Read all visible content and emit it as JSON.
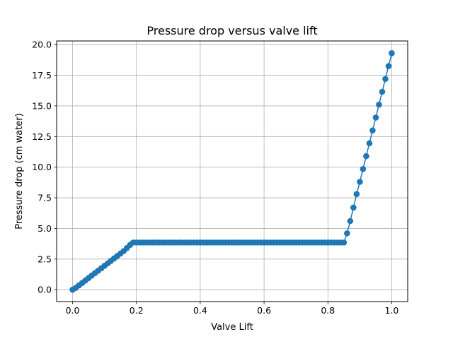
{
  "chart_data": {
    "type": "line",
    "title": "Pressure drop versus valve lift",
    "xlabel": "Valve Lift",
    "ylabel": "Pressure drop (cm water)",
    "xlim": [
      -0.05,
      1.05
    ],
    "ylim": [
      -0.97,
      20.3
    ],
    "xticks": [
      0.0,
      0.2,
      0.4,
      0.6,
      0.8,
      1.0
    ],
    "xtick_labels": [
      "0.0",
      "0.2",
      "0.4",
      "0.6",
      "0.8",
      "1.0"
    ],
    "yticks": [
      0.0,
      2.5,
      5.0,
      7.5,
      10.0,
      12.5,
      15.0,
      17.5,
      20.0
    ],
    "ytick_labels": [
      "0.0",
      "2.5",
      "5.0",
      "7.5",
      "10.0",
      "12.5",
      "15.0",
      "17.5",
      "20.0"
    ],
    "grid": true,
    "legend": "none",
    "series": [
      {
        "color": "#1f77b4",
        "marker": "circle",
        "x": [
          0.0,
          0.01,
          0.02,
          0.03,
          0.04,
          0.05,
          0.06,
          0.07,
          0.08,
          0.09,
          0.1,
          0.11,
          0.12,
          0.13,
          0.14,
          0.15,
          0.16,
          0.17,
          0.18,
          0.19,
          0.2,
          0.21,
          0.22,
          0.23,
          0.24,
          0.25,
          0.26,
          0.27,
          0.28,
          0.29,
          0.3,
          0.31,
          0.32,
          0.33,
          0.34,
          0.35,
          0.36,
          0.37,
          0.38,
          0.39,
          0.4,
          0.41,
          0.42,
          0.43,
          0.44,
          0.45,
          0.46,
          0.47,
          0.48,
          0.49,
          0.5,
          0.51,
          0.52,
          0.53,
          0.54,
          0.55,
          0.56,
          0.57,
          0.58,
          0.59,
          0.6,
          0.61,
          0.62,
          0.63,
          0.64,
          0.65,
          0.66,
          0.67,
          0.68,
          0.69,
          0.7,
          0.71,
          0.72,
          0.73,
          0.74,
          0.75,
          0.76,
          0.77,
          0.78,
          0.79,
          0.8,
          0.81,
          0.82,
          0.83,
          0.84,
          0.85,
          0.86,
          0.87,
          0.88,
          0.89,
          0.9,
          0.91,
          0.92,
          0.93,
          0.94,
          0.95,
          0.96,
          0.97,
          0.98,
          0.99,
          1.0
        ],
        "y": [
          0.0,
          0.15,
          0.35,
          0.55,
          0.75,
          0.95,
          1.15,
          1.35,
          1.55,
          1.75,
          1.95,
          2.15,
          2.35,
          2.55,
          2.75,
          2.95,
          3.15,
          3.4,
          3.65,
          3.85,
          3.85,
          3.85,
          3.85,
          3.85,
          3.85,
          3.85,
          3.85,
          3.85,
          3.85,
          3.85,
          3.85,
          3.85,
          3.85,
          3.85,
          3.85,
          3.85,
          3.85,
          3.85,
          3.85,
          3.85,
          3.85,
          3.85,
          3.85,
          3.85,
          3.85,
          3.85,
          3.85,
          3.85,
          3.85,
          3.85,
          3.85,
          3.85,
          3.85,
          3.85,
          3.85,
          3.85,
          3.85,
          3.85,
          3.85,
          3.85,
          3.85,
          3.85,
          3.85,
          3.85,
          3.85,
          3.85,
          3.85,
          3.85,
          3.85,
          3.85,
          3.85,
          3.85,
          3.85,
          3.85,
          3.85,
          3.85,
          3.85,
          3.85,
          3.85,
          3.85,
          3.85,
          3.85,
          3.85,
          3.85,
          3.85,
          3.85,
          4.6,
          5.6,
          6.7,
          7.8,
          8.8,
          9.85,
          10.9,
          11.95,
          13.0,
          14.05,
          15.1,
          16.15,
          17.2,
          18.25,
          19.3
        ]
      }
    ]
  }
}
